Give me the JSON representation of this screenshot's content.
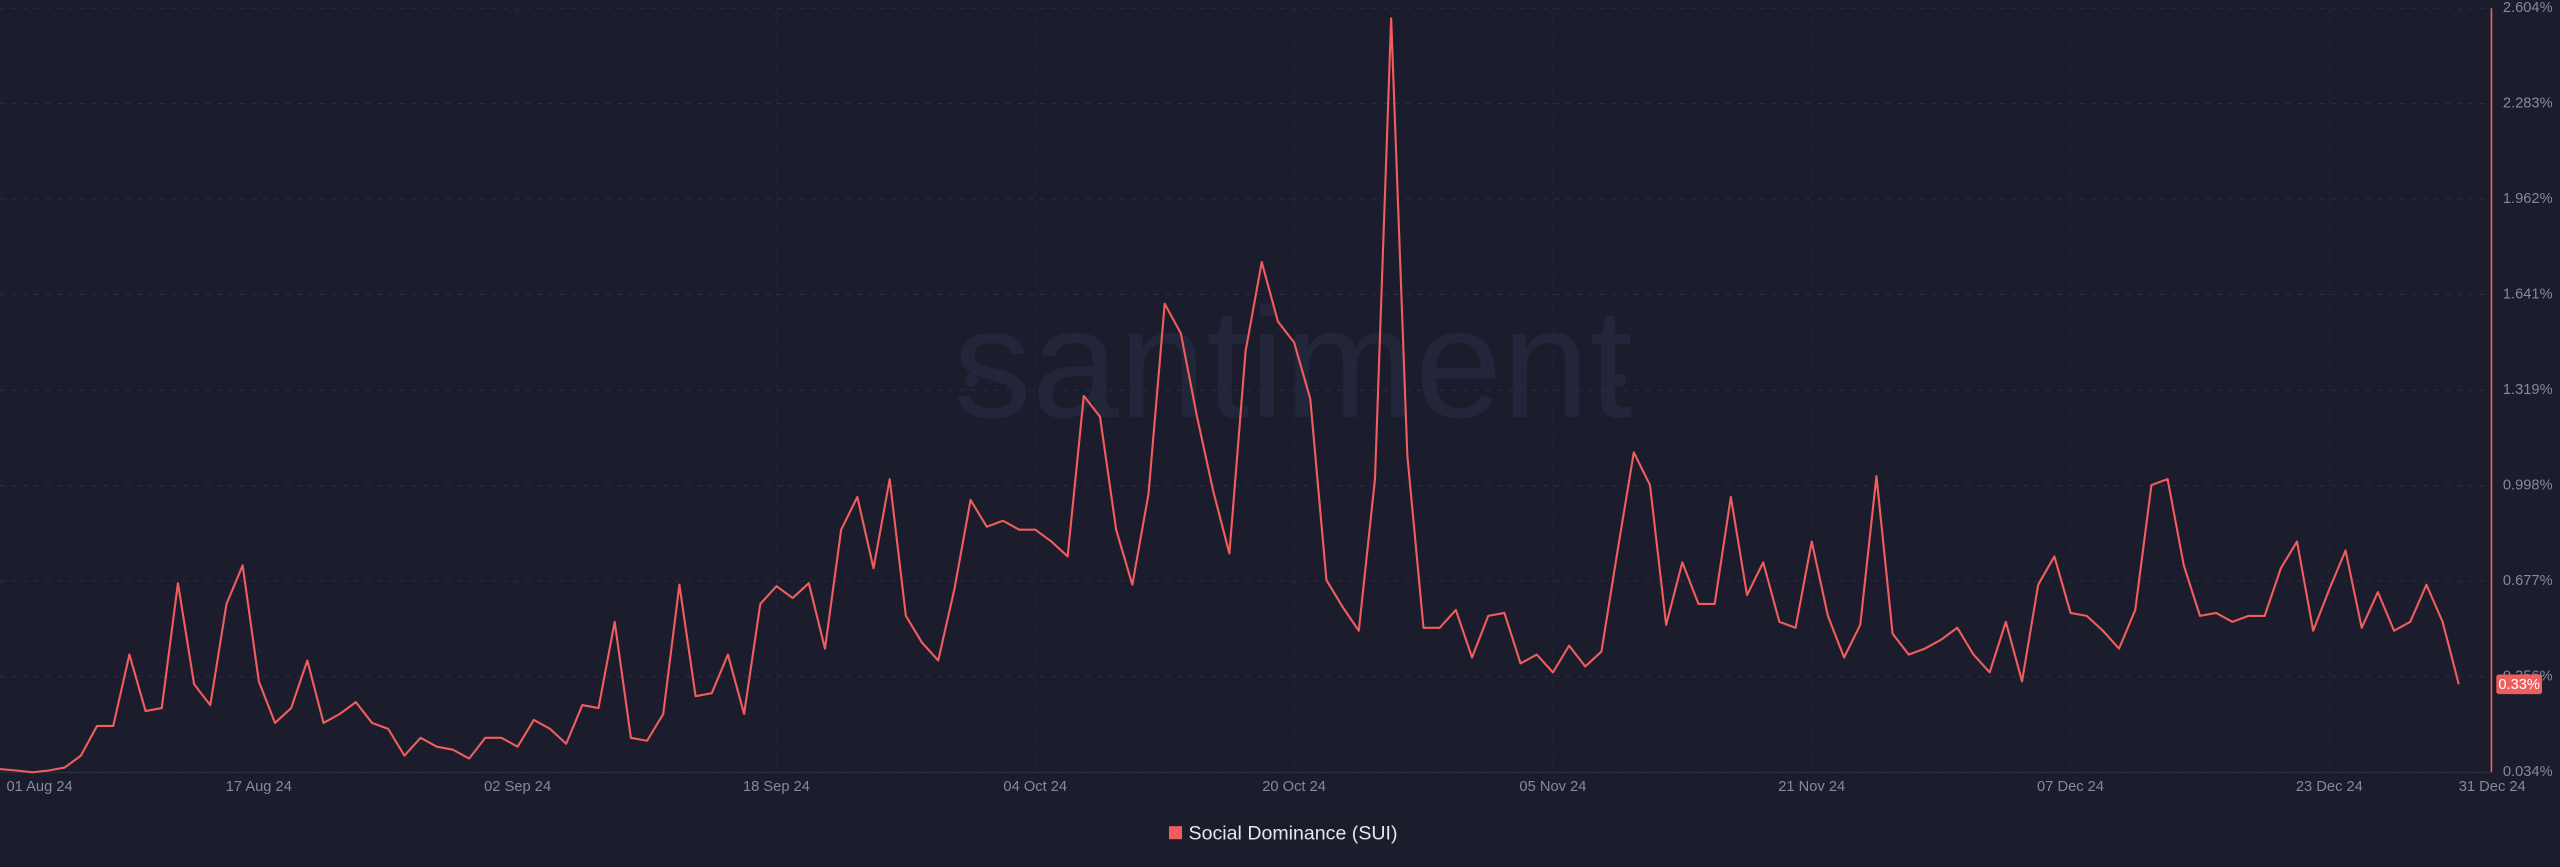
{
  "chart_data": {
    "type": "line",
    "watermark": "santiment",
    "x": [
      "2024-08-01",
      "2024-08-02",
      "2024-08-03",
      "2024-08-04",
      "2024-08-05",
      "2024-08-06",
      "2024-08-07",
      "2024-08-08",
      "2024-08-09",
      "2024-08-10",
      "2024-08-11",
      "2024-08-12",
      "2024-08-13",
      "2024-08-14",
      "2024-08-15",
      "2024-08-16",
      "2024-08-17",
      "2024-08-18",
      "2024-08-19",
      "2024-08-20",
      "2024-08-21",
      "2024-08-22",
      "2024-08-23",
      "2024-08-24",
      "2024-08-25",
      "2024-08-26",
      "2024-08-27",
      "2024-08-28",
      "2024-08-29",
      "2024-08-30",
      "2024-08-31",
      "2024-09-01",
      "2024-09-02",
      "2024-09-03",
      "2024-09-04",
      "2024-09-05",
      "2024-09-06",
      "2024-09-07",
      "2024-09-08",
      "2024-09-09",
      "2024-09-10",
      "2024-09-11",
      "2024-09-12",
      "2024-09-13",
      "2024-09-14",
      "2024-09-15",
      "2024-09-16",
      "2024-09-17",
      "2024-09-18",
      "2024-09-19",
      "2024-09-20",
      "2024-09-21",
      "2024-09-22",
      "2024-09-23",
      "2024-09-24",
      "2024-09-25",
      "2024-09-26",
      "2024-09-27",
      "2024-09-28",
      "2024-09-29",
      "2024-09-30",
      "2024-10-01",
      "2024-10-02",
      "2024-10-03",
      "2024-10-04",
      "2024-10-05",
      "2024-10-06",
      "2024-10-07",
      "2024-10-08",
      "2024-10-09",
      "2024-10-10",
      "2024-10-11",
      "2024-10-12",
      "2024-10-13",
      "2024-10-14",
      "2024-10-15",
      "2024-10-16",
      "2024-10-17",
      "2024-10-18",
      "2024-10-19",
      "2024-10-20",
      "2024-10-21",
      "2024-10-22",
      "2024-10-23",
      "2024-10-24",
      "2024-10-25",
      "2024-10-26",
      "2024-10-27",
      "2024-10-28",
      "2024-10-29",
      "2024-10-30",
      "2024-10-31",
      "2024-11-01",
      "2024-11-02",
      "2024-11-03",
      "2024-11-04",
      "2024-11-05",
      "2024-11-06",
      "2024-11-07",
      "2024-11-08",
      "2024-11-09",
      "2024-11-10",
      "2024-11-11",
      "2024-11-12",
      "2024-11-13",
      "2024-11-14",
      "2024-11-15",
      "2024-11-16",
      "2024-11-17",
      "2024-11-18",
      "2024-11-19",
      "2024-11-20",
      "2024-11-21",
      "2024-11-22",
      "2024-11-23",
      "2024-11-24",
      "2024-11-25",
      "2024-11-26",
      "2024-11-27",
      "2024-11-28",
      "2024-11-29",
      "2024-11-30",
      "2024-12-01",
      "2024-12-02",
      "2024-12-03",
      "2024-12-04",
      "2024-12-05",
      "2024-12-06",
      "2024-12-07",
      "2024-12-08",
      "2024-12-09",
      "2024-12-10",
      "2024-12-11",
      "2024-12-12",
      "2024-12-13",
      "2024-12-14",
      "2024-12-15",
      "2024-12-16",
      "2024-12-17",
      "2024-12-18",
      "2024-12-19",
      "2024-12-20",
      "2024-12-21",
      "2024-12-22",
      "2024-12-23",
      "2024-12-24",
      "2024-12-25",
      "2024-12-26",
      "2024-12-27",
      "2024-12-28",
      "2024-12-29",
      "2024-12-30",
      "2024-12-31"
    ],
    "series": [
      {
        "name": "Social Dominance (SUI)",
        "color": "#ef5d5d",
        "values": [
          0.045,
          0.04,
          0.034,
          0.04,
          0.05,
          0.09,
          0.19,
          0.19,
          0.43,
          0.24,
          0.25,
          0.67,
          0.33,
          0.26,
          0.6,
          0.73,
          0.34,
          0.2,
          0.25,
          0.41,
          0.2,
          0.23,
          0.27,
          0.2,
          0.18,
          0.09,
          0.15,
          0.12,
          0.11,
          0.08,
          0.15,
          0.15,
          0.12,
          0.21,
          0.18,
          0.13,
          0.26,
          0.25,
          0.54,
          0.15,
          0.14,
          0.23,
          0.665,
          0.29,
          0.3,
          0.43,
          0.23,
          0.6,
          0.66,
          0.62,
          0.67,
          0.45,
          0.85,
          0.96,
          0.72,
          1.02,
          0.56,
          0.47,
          0.41,
          0.65,
          0.95,
          0.86,
          0.88,
          0.85,
          0.85,
          0.81,
          0.76,
          1.3,
          1.23,
          0.85,
          0.665,
          0.97,
          1.61,
          1.51,
          1.23,
          0.98,
          0.77,
          1.45,
          1.75,
          1.55,
          1.48,
          1.29,
          0.68,
          0.59,
          0.51,
          1.02,
          2.57,
          1.1,
          0.52,
          0.52,
          0.58,
          0.42,
          0.56,
          0.57,
          0.4,
          0.43,
          0.37,
          0.46,
          0.39,
          0.44,
          0.78,
          1.11,
          1.0,
          0.53,
          0.74,
          0.6,
          0.6,
          0.96,
          0.63,
          0.74,
          0.54,
          0.52,
          0.81,
          0.56,
          0.42,
          0.53,
          1.03,
          0.5,
          0.43,
          0.45,
          0.48,
          0.52,
          0.43,
          0.37,
          0.54,
          0.34,
          0.665,
          0.76,
          0.57,
          0.56,
          0.51,
          0.45,
          0.58,
          1.0,
          1.02,
          0.73,
          0.56,
          0.57,
          0.54,
          0.56,
          0.56,
          0.72,
          0.81,
          0.51,
          0.65,
          0.78,
          0.52,
          0.64,
          0.51,
          0.54,
          0.665,
          0.54,
          0.33
        ]
      }
    ],
    "last_value_label": "0.33%",
    "xticks": [
      {
        "value": "2024-08-01",
        "label": "01 Aug 24"
      },
      {
        "value": "2024-08-17",
        "label": "17 Aug 24"
      },
      {
        "value": "2024-09-02",
        "label": "02 Sep 24"
      },
      {
        "value": "2024-09-18",
        "label": "18 Sep 24"
      },
      {
        "value": "2024-10-04",
        "label": "04 Oct 24"
      },
      {
        "value": "2024-10-20",
        "label": "20 Oct 24"
      },
      {
        "value": "2024-11-05",
        "label": "05 Nov 24"
      },
      {
        "value": "2024-11-21",
        "label": "21 Nov 24"
      },
      {
        "value": "2024-12-07",
        "label": "07 Dec 24"
      },
      {
        "value": "2024-12-23",
        "label": "23 Dec 24"
      },
      {
        "value": "2024-12-31",
        "label": "31 Dec 24"
      }
    ],
    "ylim": [
      0.034,
      2.604
    ],
    "yticks": [
      {
        "value": 0.034,
        "label": "0.034%"
      },
      {
        "value": 0.356,
        "label": "0.356%"
      },
      {
        "value": 0.677,
        "label": "0.677%"
      },
      {
        "value": 0.998,
        "label": "0.998%"
      },
      {
        "value": 1.319,
        "label": "1.319%"
      },
      {
        "value": 1.641,
        "label": "1.641%"
      },
      {
        "value": 1.962,
        "label": "1.962%"
      },
      {
        "value": 2.283,
        "label": "2.283%"
      },
      {
        "value": 2.604,
        "label": "2.604%"
      }
    ],
    "y_axis_side": "right",
    "grid": true,
    "legend": "bottom"
  }
}
